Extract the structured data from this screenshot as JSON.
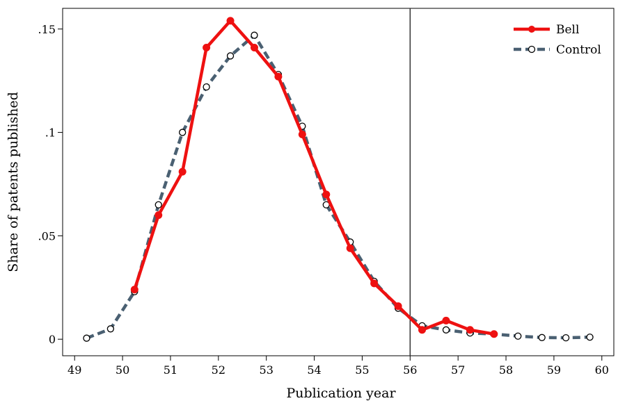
{
  "chart_data": {
    "type": "line",
    "title": "",
    "xlabel": "Publication year",
    "ylabel": "Share of patents published",
    "xlim": [
      48.75,
      60.25
    ],
    "ylim": [
      -0.008,
      0.16
    ],
    "x_ticks": [
      49,
      50,
      51,
      52,
      53,
      54,
      55,
      56,
      57,
      58,
      59,
      60
    ],
    "x_tick_labels": [
      "49",
      "50",
      "51",
      "52",
      "53",
      "54",
      "55",
      "56",
      "57",
      "58",
      "59",
      "60"
    ],
    "y_ticks": [
      0,
      0.05,
      0.1,
      0.15
    ],
    "y_tick_labels": [
      "0",
      ".05",
      ".1",
      ".15"
    ],
    "reference_line_x": 56,
    "grid": false,
    "legend_position": "top-right",
    "series": [
      {
        "name": "Control",
        "color": "#4a6072",
        "style": "dashed",
        "marker": "hollow-circle",
        "x": [
          49.25,
          49.75,
          50.25,
          50.75,
          51.25,
          51.75,
          52.25,
          52.75,
          53.25,
          53.75,
          54.25,
          54.75,
          55.25,
          55.75,
          56.25,
          56.75,
          57.25,
          57.75,
          58.25,
          58.75,
          59.25,
          59.75
        ],
        "y": [
          0.0005,
          0.005,
          0.023,
          0.065,
          0.1,
          0.122,
          0.137,
          0.147,
          0.128,
          0.103,
          0.065,
          0.047,
          0.028,
          0.015,
          0.0065,
          0.0045,
          0.003,
          0.0025,
          0.0015,
          0.0008,
          0.0007,
          0.001
        ]
      },
      {
        "name": "Bell",
        "color": "#ee1111",
        "style": "solid",
        "marker": "filled-circle",
        "x": [
          50.25,
          50.75,
          51.25,
          51.75,
          52.25,
          52.75,
          53.25,
          53.75,
          54.25,
          54.75,
          55.25,
          55.75,
          56.25,
          56.75,
          57.25,
          57.75
        ],
        "y": [
          0.024,
          0.06,
          0.081,
          0.141,
          0.154,
          0.141,
          0.127,
          0.099,
          0.07,
          0.044,
          0.027,
          0.016,
          0.0045,
          0.009,
          0.0045,
          0.0025
        ]
      }
    ],
    "legend_order": [
      "Bell",
      "Control"
    ]
  }
}
